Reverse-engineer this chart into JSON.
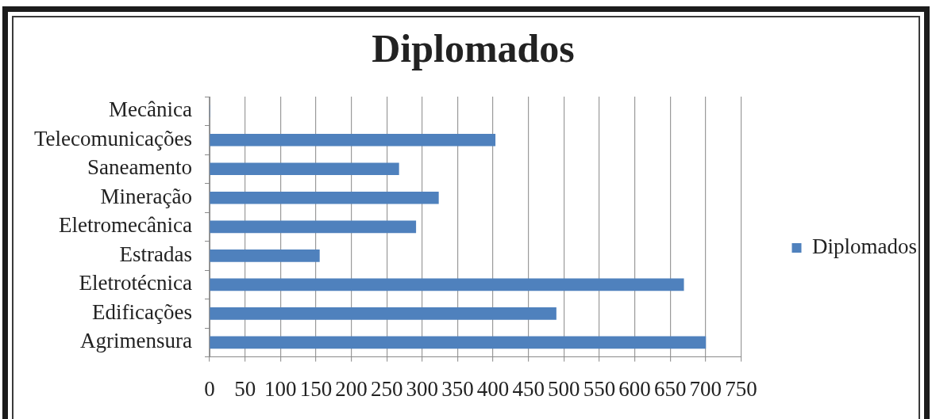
{
  "chart_data": {
    "type": "bar",
    "orientation": "horizontal",
    "title": "Diplomados",
    "categories": [
      "Mecânica",
      "Telecomunicações",
      "Saneamento",
      "Mineração",
      "Eletromecânica",
      "Estradas",
      "Eletrotécnica",
      "Edificações",
      "Agrimensura"
    ],
    "series": [
      {
        "name": "Diplomados",
        "color": "#4f81bd",
        "values": [
          0,
          403,
          267,
          323,
          291,
          155,
          669,
          489,
          700
        ]
      }
    ],
    "xlim": [
      0,
      750
    ],
    "xticks": [
      0,
      50,
      100,
      150,
      200,
      250,
      300,
      350,
      400,
      450,
      500,
      550,
      600,
      650,
      700,
      750
    ],
    "grid": "x",
    "legend": "right"
  }
}
